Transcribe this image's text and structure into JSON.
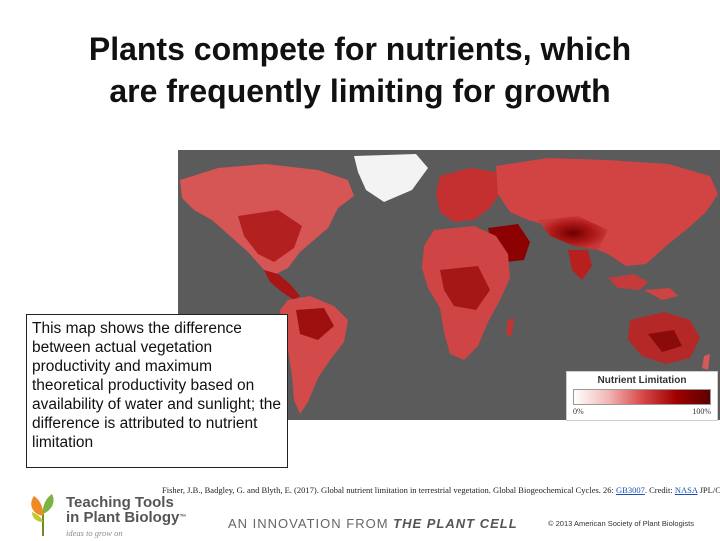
{
  "slide": {
    "title_line1": "Plants compete for nutrients, which",
    "title_line2": "are frequently limiting for growth"
  },
  "map": {
    "legend_title": "Nutrient Limitation",
    "legend_min": "0%",
    "legend_max": "100%",
    "ocean_color": "#5b5b5b",
    "low_color": "#ffffff",
    "high_color": "#8b0000"
  },
  "callout": {
    "text": "This map shows the difference between actual vegetation productivity and maximum theoretical productivity based on availability of water and sunlight; the difference is attributed to nutrient limitation"
  },
  "citation": {
    "text": "Fisher, J.B., Badgley, G. and Blyth, E. (2017). Global nutrient limitation in terrestrial vegetation. Global Biogeochemical Cycles. 26: ",
    "link1": "GB3007",
    "mid": ". Credit: ",
    "link2": "NASA",
    "tail": " JPL/Caltech."
  },
  "footer": {
    "brand_line1": "Teaching Tools",
    "brand_line2": "in Plant Biology",
    "tm": "™",
    "tagline": "ideas to grow on",
    "innovation_prefix": "AN INNOVATION FROM ",
    "innovation_brand": "THE PLANT CELL",
    "copyright": "© 2013 American Society of Plant Biologists"
  }
}
